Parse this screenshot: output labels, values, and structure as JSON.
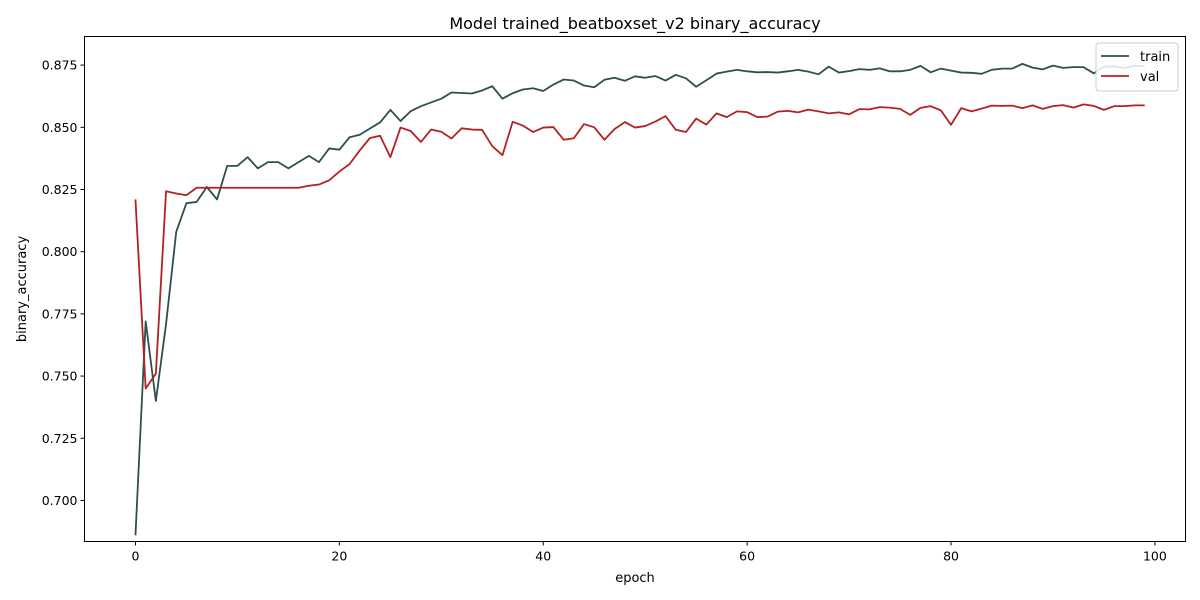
{
  "chart_data": {
    "type": "line",
    "title": "Model trained_beatboxset_v2 binary_accuracy",
    "xlabel": "epoch",
    "ylabel": "binary_accuracy",
    "xlim": [
      -5,
      103
    ],
    "ylim": [
      0.6835,
      0.8865
    ],
    "xticks": [
      0,
      20,
      40,
      60,
      80,
      100
    ],
    "yticks": [
      0.7,
      0.725,
      0.75,
      0.775,
      0.8,
      0.825,
      0.85,
      0.875
    ],
    "ytick_labels": [
      "0.700",
      "0.725",
      "0.750",
      "0.775",
      "0.800",
      "0.825",
      "0.850",
      "0.875"
    ],
    "grid": false,
    "legend_position": "top-right",
    "x": [
      0,
      1,
      2,
      3,
      4,
      5,
      6,
      7,
      8,
      9,
      10,
      11,
      12,
      13,
      14,
      15,
      16,
      17,
      18,
      19,
      20,
      21,
      22,
      23,
      24,
      25,
      26,
      27,
      28,
      29,
      30,
      31,
      32,
      33,
      34,
      35,
      36,
      37,
      38,
      39,
      40,
      41,
      42,
      43,
      44,
      45,
      46,
      47,
      48,
      49,
      50,
      51,
      52,
      53,
      54,
      55,
      56,
      57,
      58,
      59,
      60,
      61,
      62,
      63,
      64,
      65,
      66,
      67,
      68,
      69,
      70,
      71,
      72,
      73,
      74,
      75,
      76,
      77,
      78,
      79,
      80,
      81,
      82,
      83,
      84,
      85,
      86,
      87,
      88,
      89,
      90,
      91,
      92,
      93,
      94,
      95,
      96,
      97,
      98,
      99
    ],
    "series": [
      {
        "name": "train",
        "color": "#2f4f4f",
        "values": [
          0.686,
          0.772,
          0.74,
          0.771,
          0.808,
          0.8195,
          0.82,
          0.826,
          0.821,
          0.8345,
          0.8345,
          0.838,
          0.8335,
          0.836,
          0.836,
          0.8335,
          0.836,
          0.8385,
          0.836,
          0.8415,
          0.841,
          0.846,
          0.847,
          0.8495,
          0.852,
          0.857,
          0.8525,
          0.8565,
          0.8585,
          0.86,
          0.8615,
          0.864,
          0.8638,
          0.8636,
          0.8648,
          0.8665,
          0.8615,
          0.8637,
          0.8652,
          0.8657,
          0.8646,
          0.8672,
          0.8692,
          0.8688,
          0.8668,
          0.8661,
          0.8691,
          0.8699,
          0.8687,
          0.8705,
          0.8699,
          0.8706,
          0.8688,
          0.8711,
          0.8697,
          0.8663,
          0.8689,
          0.8716,
          0.8724,
          0.8731,
          0.8725,
          0.8721,
          0.8722,
          0.872,
          0.8725,
          0.8731,
          0.8724,
          0.8713,
          0.8744,
          0.872,
          0.8726,
          0.8734,
          0.8731,
          0.8737,
          0.8725,
          0.8725,
          0.8731,
          0.8747,
          0.8721,
          0.8736,
          0.8728,
          0.872,
          0.8719,
          0.8715,
          0.8731,
          0.8736,
          0.8736,
          0.8755,
          0.874,
          0.8733,
          0.8748,
          0.8739,
          0.8742,
          0.8742,
          0.8717,
          0.8744,
          0.8745,
          0.8738,
          0.8748,
          0.8745
        ]
      },
      {
        "name": "val",
        "color": "#b22222",
        "values": [
          0.821,
          0.745,
          0.751,
          0.8243,
          0.8234,
          0.8227,
          0.8257,
          0.8257,
          0.8257,
          0.8257,
          0.8257,
          0.8257,
          0.8257,
          0.8257,
          0.8257,
          0.8257,
          0.8257,
          0.8265,
          0.827,
          0.8287,
          0.8322,
          0.8352,
          0.8407,
          0.8457,
          0.8466,
          0.838,
          0.8499,
          0.8485,
          0.8441,
          0.8491,
          0.8482,
          0.8455,
          0.8496,
          0.8491,
          0.849,
          0.8424,
          0.8388,
          0.8522,
          0.8507,
          0.8481,
          0.8499,
          0.8501,
          0.845,
          0.8456,
          0.8513,
          0.85,
          0.845,
          0.8493,
          0.8521,
          0.8499,
          0.8505,
          0.8523,
          0.8545,
          0.849,
          0.8481,
          0.8535,
          0.8511,
          0.8556,
          0.8541,
          0.8564,
          0.8561,
          0.8541,
          0.8543,
          0.8563,
          0.8566,
          0.856,
          0.8571,
          0.8564,
          0.8556,
          0.856,
          0.8552,
          0.8573,
          0.8572,
          0.8581,
          0.8579,
          0.8574,
          0.855,
          0.8578,
          0.8585,
          0.8568,
          0.851,
          0.8577,
          0.8564,
          0.8575,
          0.8587,
          0.8586,
          0.8587,
          0.8577,
          0.8588,
          0.8574,
          0.8585,
          0.8589,
          0.8579,
          0.8592,
          0.8586,
          0.857,
          0.8585,
          0.8585,
          0.8588,
          0.8588
        ]
      }
    ]
  }
}
